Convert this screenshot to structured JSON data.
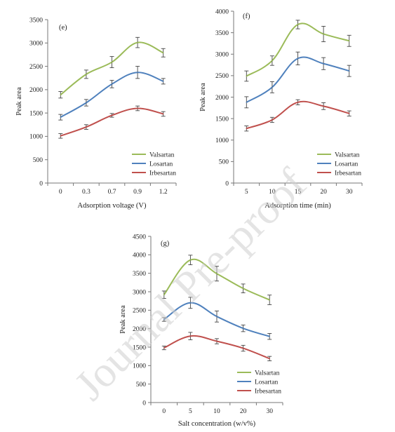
{
  "watermark": "Journal Pre-proof",
  "chart_data": [
    {
      "type": "line",
      "panel_label": "(e)",
      "xlabel": "Adsorption voltage (V)",
      "ylabel": "Peak area",
      "categories": [
        "0",
        "0.3",
        "0.7",
        "0.9",
        "1.2"
      ],
      "ylim": [
        0,
        3500
      ],
      "yticks": [
        0,
        500,
        1000,
        1500,
        2000,
        2500,
        3000,
        3500
      ],
      "grid": false,
      "legend_position": "bottom-right",
      "series": [
        {
          "name": "Valsartan",
          "color": "#9bbb59",
          "values": [
            1890,
            2330,
            2590,
            3010,
            2790
          ],
          "errors": [
            70,
            90,
            120,
            110,
            90
          ]
        },
        {
          "name": "Losartan",
          "color": "#4f81bd",
          "values": [
            1410,
            1720,
            2120,
            2370,
            2180
          ],
          "errors": [
            60,
            70,
            80,
            130,
            60
          ]
        },
        {
          "name": "Irbesartan",
          "color": "#c0504d",
          "values": [
            1010,
            1200,
            1450,
            1600,
            1480
          ],
          "errors": [
            50,
            50,
            40,
            50,
            50
          ]
        }
      ]
    },
    {
      "type": "line",
      "panel_label": "(f)",
      "xlabel": "Adsorption time (min)",
      "ylabel": "Peak area",
      "categories": [
        "5",
        "10",
        "15",
        "20",
        "30"
      ],
      "ylim": [
        0,
        4000
      ],
      "yticks": [
        0,
        500,
        1000,
        1500,
        2000,
        2500,
        3000,
        3500,
        4000
      ],
      "grid": false,
      "legend_position": "bottom-right",
      "series": [
        {
          "name": "Valsartan",
          "color": "#9bbb59",
          "values": [
            2490,
            2850,
            3690,
            3470,
            3310
          ],
          "errors": [
            120,
            110,
            100,
            180,
            130
          ]
        },
        {
          "name": "Losartan",
          "color": "#4f81bd",
          "values": [
            1880,
            2230,
            2900,
            2780,
            2610
          ],
          "errors": [
            130,
            130,
            150,
            140,
            130
          ]
        },
        {
          "name": "Irbesartan",
          "color": "#c0504d",
          "values": [
            1270,
            1470,
            1880,
            1790,
            1620
          ],
          "errors": [
            60,
            60,
            60,
            80,
            60
          ]
        }
      ]
    },
    {
      "type": "line",
      "panel_label": "(g)",
      "xlabel": "Salt concentration (w/v%)",
      "ylabel": "Peak area",
      "categories": [
        "0",
        "5",
        "10",
        "20",
        "30"
      ],
      "ylim": [
        0,
        4500
      ],
      "yticks": [
        0,
        500,
        1000,
        1500,
        2000,
        2500,
        3000,
        3500,
        4000,
        4500
      ],
      "grid": false,
      "legend_position": "bottom-right",
      "series": [
        {
          "name": "Valsartan",
          "color": "#9bbb59",
          "values": [
            2920,
            3860,
            3490,
            3090,
            2780
          ],
          "errors": [
            100,
            130,
            200,
            120,
            130
          ]
        },
        {
          "name": "Losartan",
          "color": "#4f81bd",
          "values": [
            2250,
            2700,
            2330,
            2010,
            1790
          ],
          "errors": [
            50,
            150,
            150,
            90,
            80
          ]
        },
        {
          "name": "Irbesartan",
          "color": "#c0504d",
          "values": [
            1480,
            1800,
            1660,
            1470,
            1190
          ],
          "errors": [
            50,
            100,
            70,
            80,
            60
          ]
        }
      ]
    }
  ]
}
